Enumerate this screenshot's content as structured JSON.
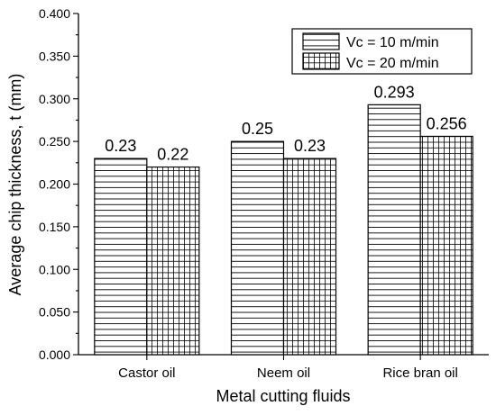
{
  "chart_data": {
    "type": "bar",
    "categories": [
      "Castor oil",
      "Neem oil",
      "Rice bran oil"
    ],
    "series": [
      {
        "name": "Vc = 10 m/min",
        "values": [
          0.23,
          0.25,
          0.293
        ],
        "labels": [
          "0.23",
          "0.25",
          "0.293"
        ],
        "pattern": "horizontal-lines"
      },
      {
        "name": "Vc = 20 m/min",
        "values": [
          0.22,
          0.23,
          0.256
        ],
        "labels": [
          "0.22",
          "0.23",
          "0.256"
        ],
        "pattern": "grid"
      }
    ],
    "xlabel": "Metal cutting fluids",
    "ylabel": "Average chip thickness, t (mm)",
    "ylim": [
      0,
      0.4
    ],
    "yticks": [
      "0.000",
      "0.050",
      "0.100",
      "0.150",
      "0.200",
      "0.250",
      "0.300",
      "0.350",
      "0.400"
    ],
    "grid": false,
    "legend_position": "top-right",
    "colors": {
      "stroke": "#000000",
      "fill": "#ffffff"
    }
  }
}
